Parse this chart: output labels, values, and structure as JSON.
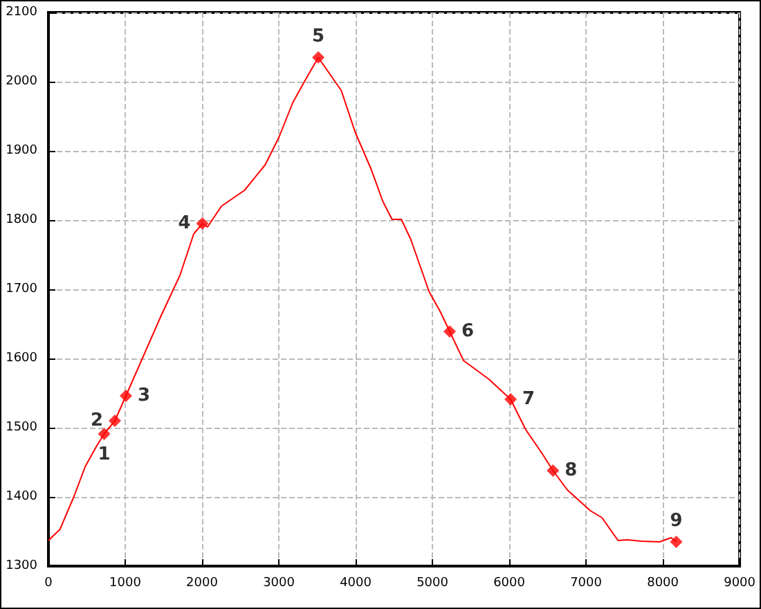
{
  "chart_data": {
    "type": "line",
    "xlim": [
      0,
      9000
    ],
    "xticks": [
      0,
      1000,
      2000,
      3000,
      4000,
      5000,
      6000,
      7000,
      8000,
      9000
    ],
    "ylim": [
      1300,
      2100
    ],
    "yticks": [
      1300,
      1400,
      1500,
      1600,
      1700,
      1800,
      1900,
      2000,
      2100
    ],
    "grid": true,
    "series": [
      {
        "color": "#ff0000",
        "marker": "none",
        "x": [
          0,
          150,
          330,
          480,
          630,
          726,
          865,
          1009,
          1472,
          1712,
          1892,
          2005,
          2072,
          2252,
          2553,
          2823,
          3003,
          3183,
          3333,
          3514,
          3814,
          3994,
          4204,
          4354,
          4474,
          4595,
          4715,
          4883,
          4955,
          5105,
          5225,
          5405,
          5736,
          6018,
          6216,
          6426,
          6570,
          6757,
          7057,
          7207,
          7417,
          7538,
          7718,
          7958,
          8108,
          8175
        ],
        "values": [
          1337,
          1353,
          1400,
          1444,
          1474,
          1491,
          1510,
          1546,
          1663,
          1720,
          1780,
          1795,
          1790,
          1820,
          1843,
          1880,
          1920,
          1970,
          2000,
          2035,
          1987,
          1927,
          1873,
          1827,
          1801,
          1801,
          1773,
          1720,
          1697,
          1667,
          1639,
          1597,
          1570,
          1541,
          1497,
          1463,
          1438,
          1410,
          1380,
          1370,
          1337,
          1338,
          1336,
          1335,
          1341,
          1335
        ]
      },
      {
        "type": "scatter",
        "color": "#ff0000",
        "marker": "diamond",
        "x": [
          726,
          865,
          1009,
          2005,
          3514,
          5225,
          6018,
          6570,
          8175
        ],
        "values": [
          1491,
          1510,
          1546,
          1795,
          2035,
          1639,
          1541,
          1438,
          1335
        ]
      }
    ],
    "annotations": [
      {
        "text": "1",
        "x": 726,
        "y": 1491
      },
      {
        "text": "2",
        "x": 865,
        "y": 1510
      },
      {
        "text": "3",
        "x": 1009,
        "y": 1546
      },
      {
        "text": "4",
        "x": 2005,
        "y": 1795
      },
      {
        "text": "5",
        "x": 3514,
        "y": 2035
      },
      {
        "text": "6",
        "x": 5225,
        "y": 1639
      },
      {
        "text": "7",
        "x": 6018,
        "y": 1541
      },
      {
        "text": "8",
        "x": 6570,
        "y": 1438
      },
      {
        "text": "9",
        "x": 8175,
        "y": 1335
      }
    ]
  }
}
